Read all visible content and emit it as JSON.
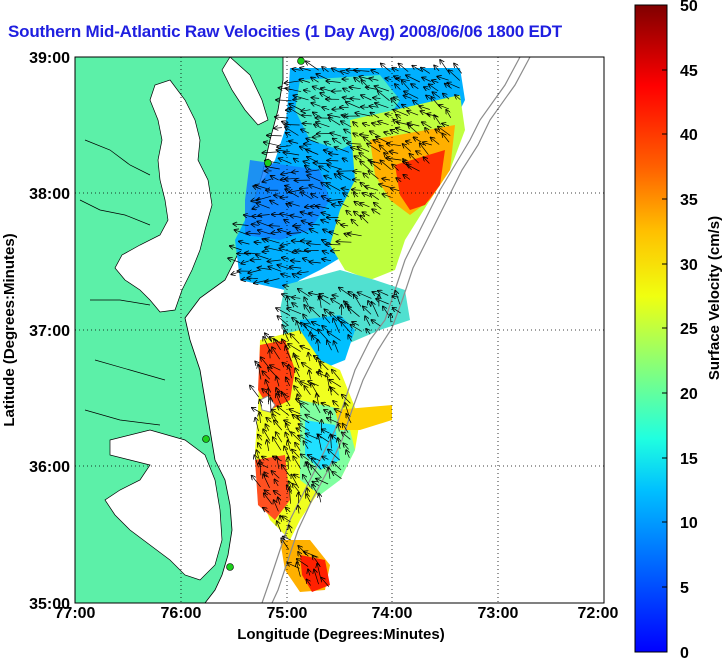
{
  "title": "Southern Mid-Atlantic Raw Velocities (1 Day Avg) 2008/06/06 1800 EDT",
  "x_axis": {
    "label": "Longitude (Degrees:Minutes)",
    "ticks": [
      "77:00",
      "76:00",
      "75:00",
      "74:00",
      "73:00",
      "72:00"
    ],
    "range_deg_west": [
      77,
      72
    ]
  },
  "y_axis": {
    "label": "Latitude (Degrees:Minutes)",
    "ticks": [
      "35:00",
      "36:00",
      "37:00",
      "38:00",
      "39:00"
    ],
    "range_deg_north": [
      35,
      39
    ]
  },
  "colorbar": {
    "label": "Surface Velocity (cm/s)",
    "ticks": [
      "0",
      "5",
      "10",
      "15",
      "20",
      "25",
      "30",
      "35",
      "40",
      "45",
      "50"
    ],
    "range": [
      0,
      50
    ]
  },
  "colors": {
    "land": "#5cf0a8",
    "title": "#1f1fe0",
    "coastline": "#000000",
    "bathymetry": "#8c8c8c",
    "station": "#1ccf1c"
  }
}
